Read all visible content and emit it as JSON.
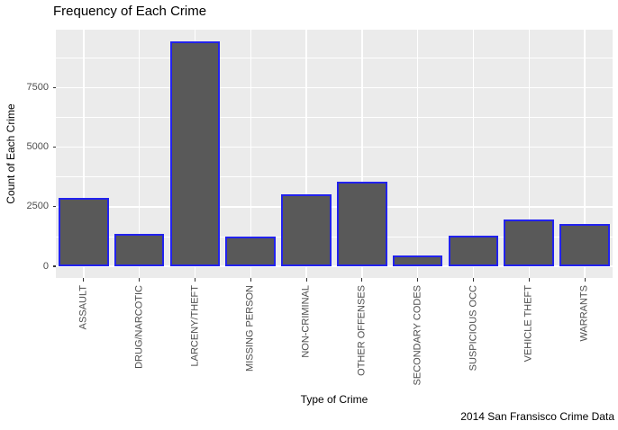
{
  "caption": "2014 San Fransisco Crime Data",
  "chart_data": {
    "type": "bar",
    "title": "Frequency of Each Crime",
    "xlabel": "Type of Crime",
    "ylabel": "Count of Each Crime",
    "categories": [
      "ASSAULT",
      "DRUG/NARCOTIC",
      "LARCENY/THEFT",
      "MISSING PERSON",
      "NON-CRIMINAL",
      "OTHER OFFENSES",
      "SECONDARY CODES",
      "SUSPICIOUS OCC",
      "VEHICLE THEFT",
      "WARRANTS"
    ],
    "values": [
      2882,
      1345,
      9466,
      1266,
      3023,
      3567,
      442,
      1300,
      1966,
      1782
    ],
    "ylim": [
      0,
      9940
    ],
    "yticks": [
      0,
      2500,
      5000,
      7500
    ],
    "yticks_minor": [
      1250,
      3750,
      6250,
      8750
    ],
    "grid": "on",
    "legend": "none",
    "colors": {
      "panel_background": "#EBEBEB",
      "gridline": "#FFFFFF",
      "bar_fill": "#595959",
      "bar_stroke": "#2222EE",
      "axis_text": "#4D4D4D",
      "tick_mark": "#333333",
      "title_text": "#000000"
    }
  }
}
